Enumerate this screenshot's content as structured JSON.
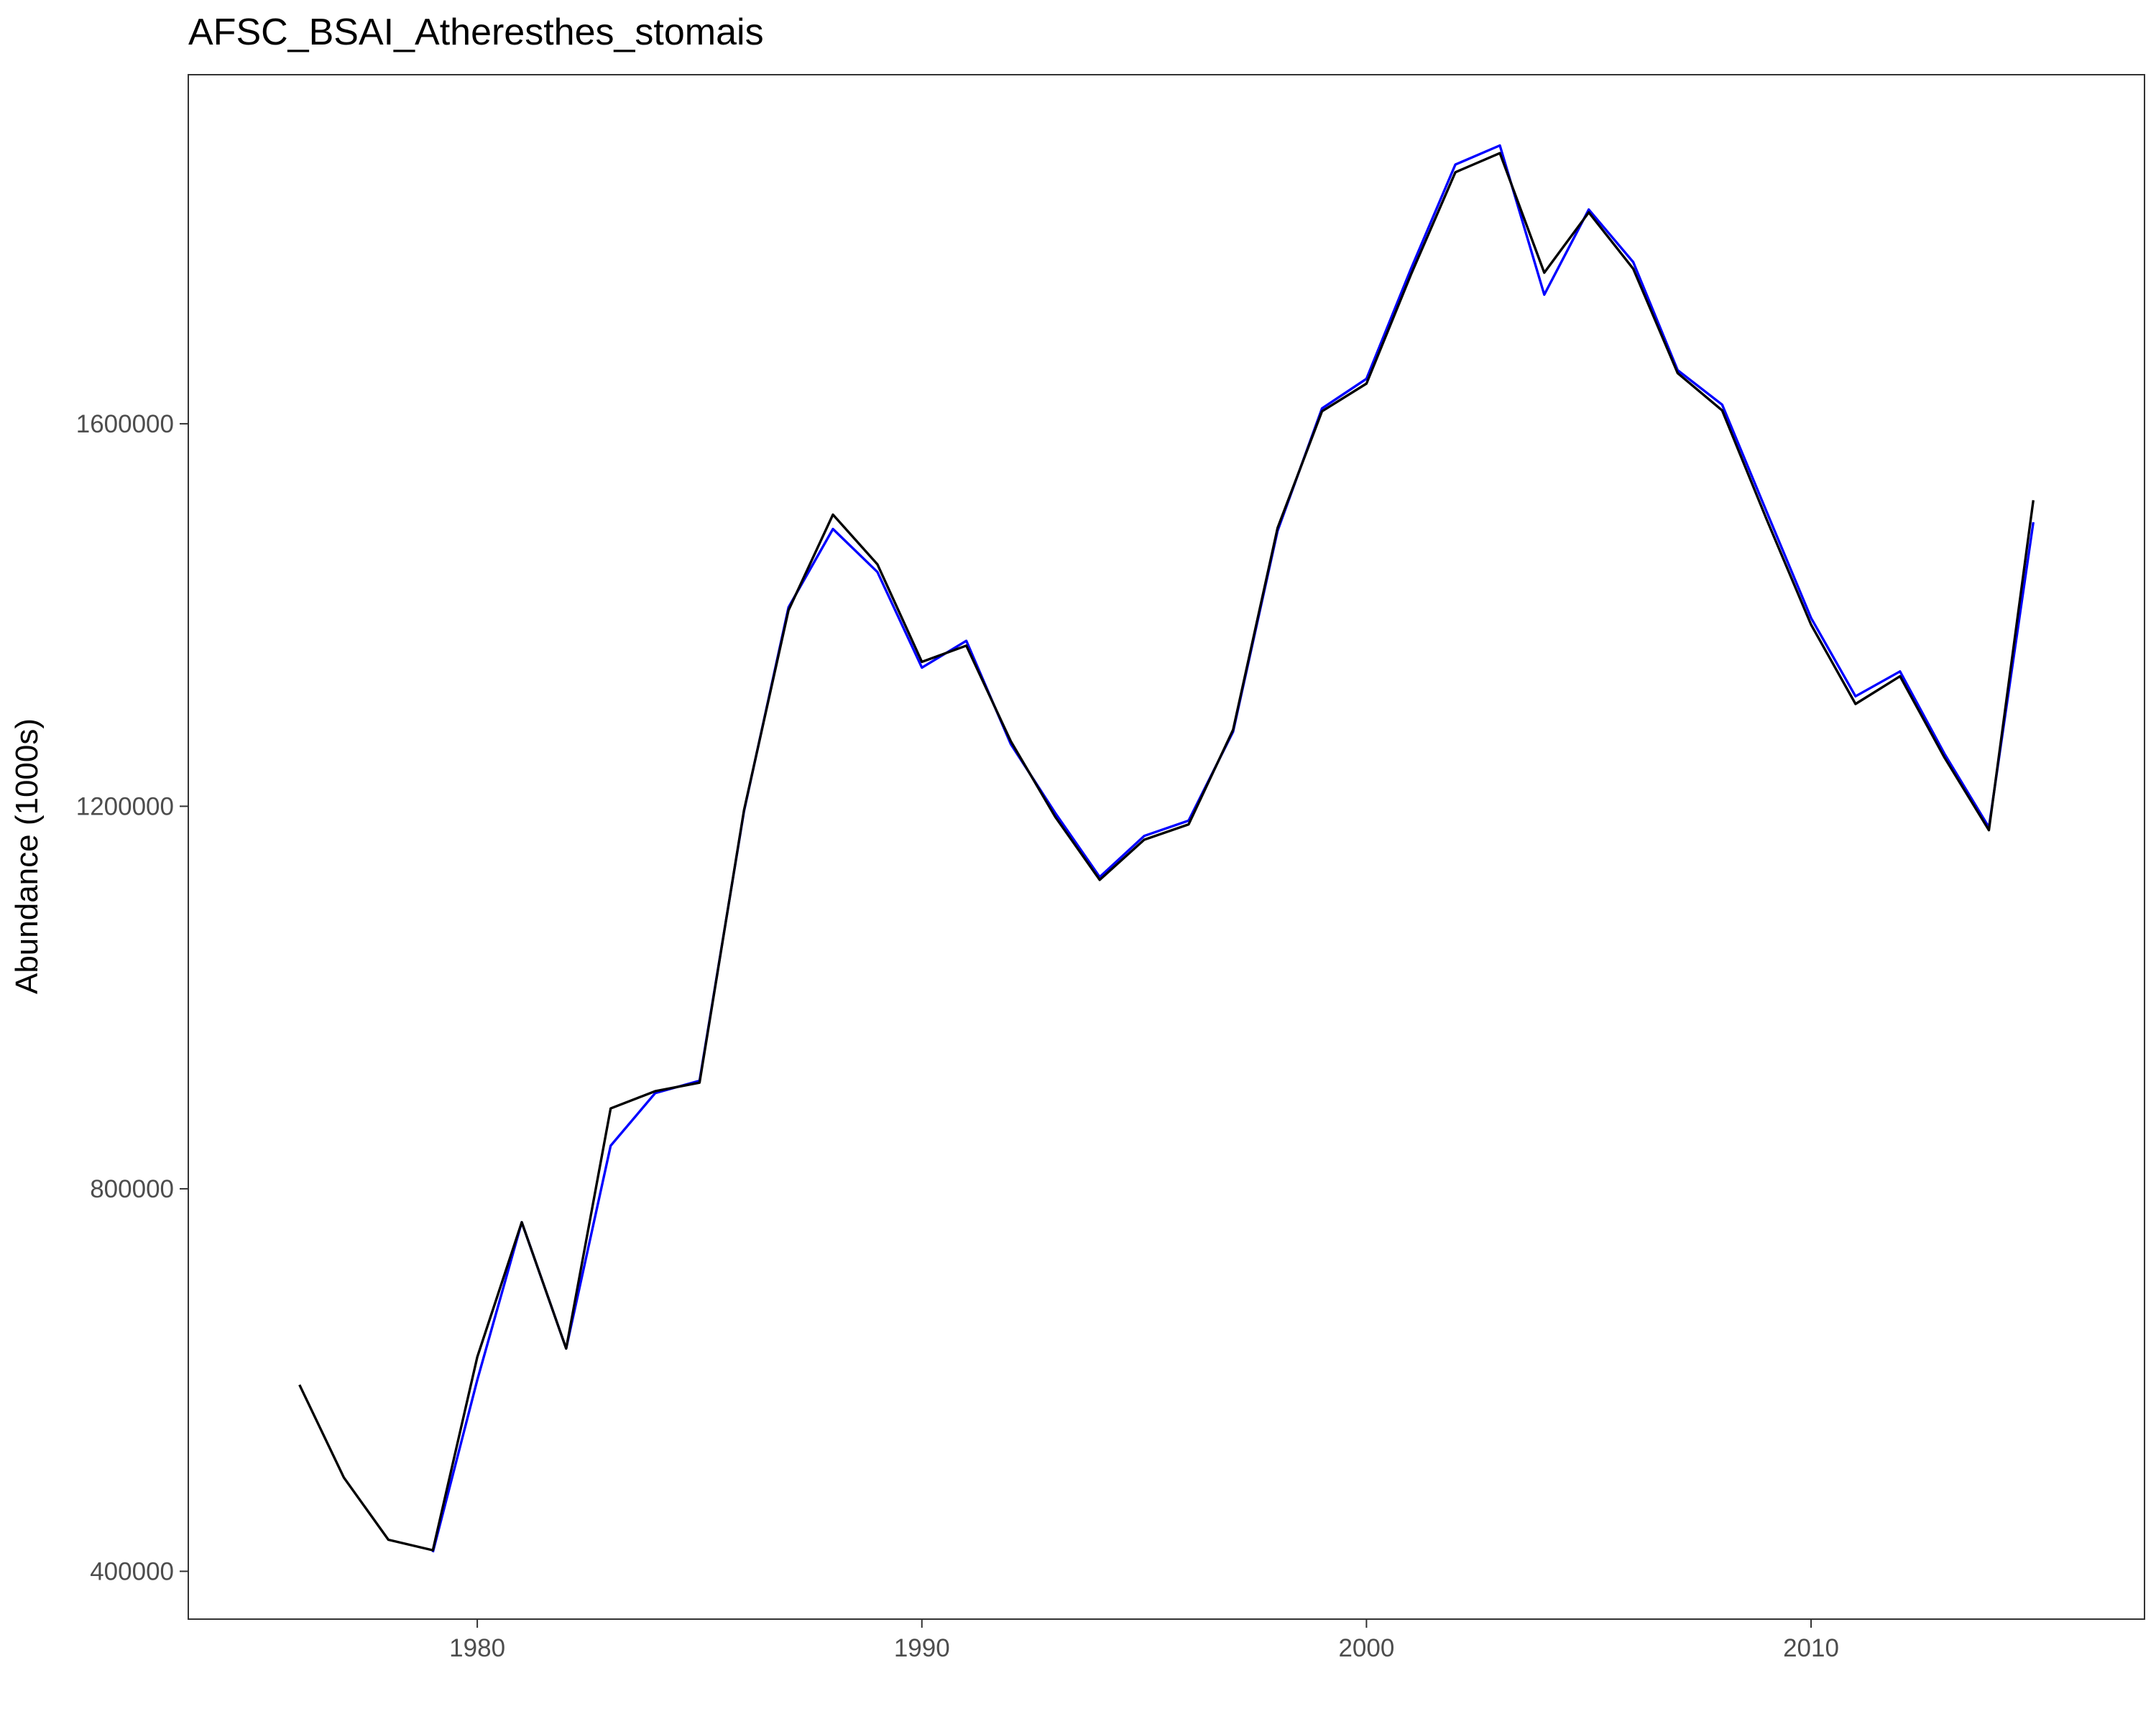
{
  "chart_data": {
    "type": "line",
    "title": "AFSC_BSAI_Atheresthes_stomais",
    "xlabel": "",
    "ylabel": "Abundance (1000s)",
    "xlim": [
      1973.5,
      2017.5
    ],
    "ylim": [
      350000,
      1965000
    ],
    "x_ticks": [
      1980,
      1990,
      2000,
      2010
    ],
    "y_ticks": [
      400000,
      800000,
      1200000,
      1600000
    ],
    "grid": false,
    "legend": "none",
    "series": [
      {
        "color": "#0000ff",
        "x": [
          1979,
          1980,
          1981,
          1982,
          1983,
          1984,
          1985,
          1986,
          1987,
          1988,
          1989,
          1990,
          1991,
          1992,
          1993,
          1994,
          1995,
          1996,
          1997,
          1998,
          1999,
          2000,
          2001,
          2002,
          2003,
          2004,
          2005,
          2006,
          2007,
          2008,
          2009,
          2010,
          2011,
          2012,
          2013,
          2014,
          2015
        ],
        "y": [
          420000,
          600000,
          765000,
          633000,
          845000,
          900000,
          913000,
          1195000,
          1408000,
          1490000,
          1445000,
          1345000,
          1373000,
          1265000,
          1193000,
          1126000,
          1169000,
          1185000,
          1278000,
          1488000,
          1616000,
          1647000,
          1762000,
          1871000,
          1891000,
          1735000,
          1824000,
          1769000,
          1656000,
          1620000,
          1508000,
          1397000,
          1315000,
          1341000,
          1255000,
          1178000,
          1497000
        ]
      },
      {
        "color": "#000000",
        "x": [
          1976,
          1977,
          1978,
          1979,
          1980,
          1981,
          1982,
          1983,
          1984,
          1985,
          1986,
          1987,
          1988,
          1989,
          1990,
          1991,
          1992,
          1993,
          1994,
          1995,
          1996,
          1997,
          1998,
          1999,
          2000,
          2001,
          2002,
          2003,
          2004,
          2005,
          2006,
          2007,
          2008,
          2009,
          2010,
          2011,
          2012,
          2013,
          2014,
          2015
        ],
        "y": [
          595000,
          498000,
          433000,
          422000,
          624000,
          765000,
          633000,
          884000,
          902000,
          911000,
          1196000,
          1405000,
          1505000,
          1453000,
          1351000,
          1368000,
          1268000,
          1189000,
          1123000,
          1165000,
          1181000,
          1280000,
          1491000,
          1613000,
          1642000,
          1756000,
          1863000,
          1883000,
          1758000,
          1821000,
          1762000,
          1653000,
          1614000,
          1500000,
          1390000,
          1307000,
          1336000,
          1251000,
          1175000,
          1520000
        ]
      }
    ]
  }
}
